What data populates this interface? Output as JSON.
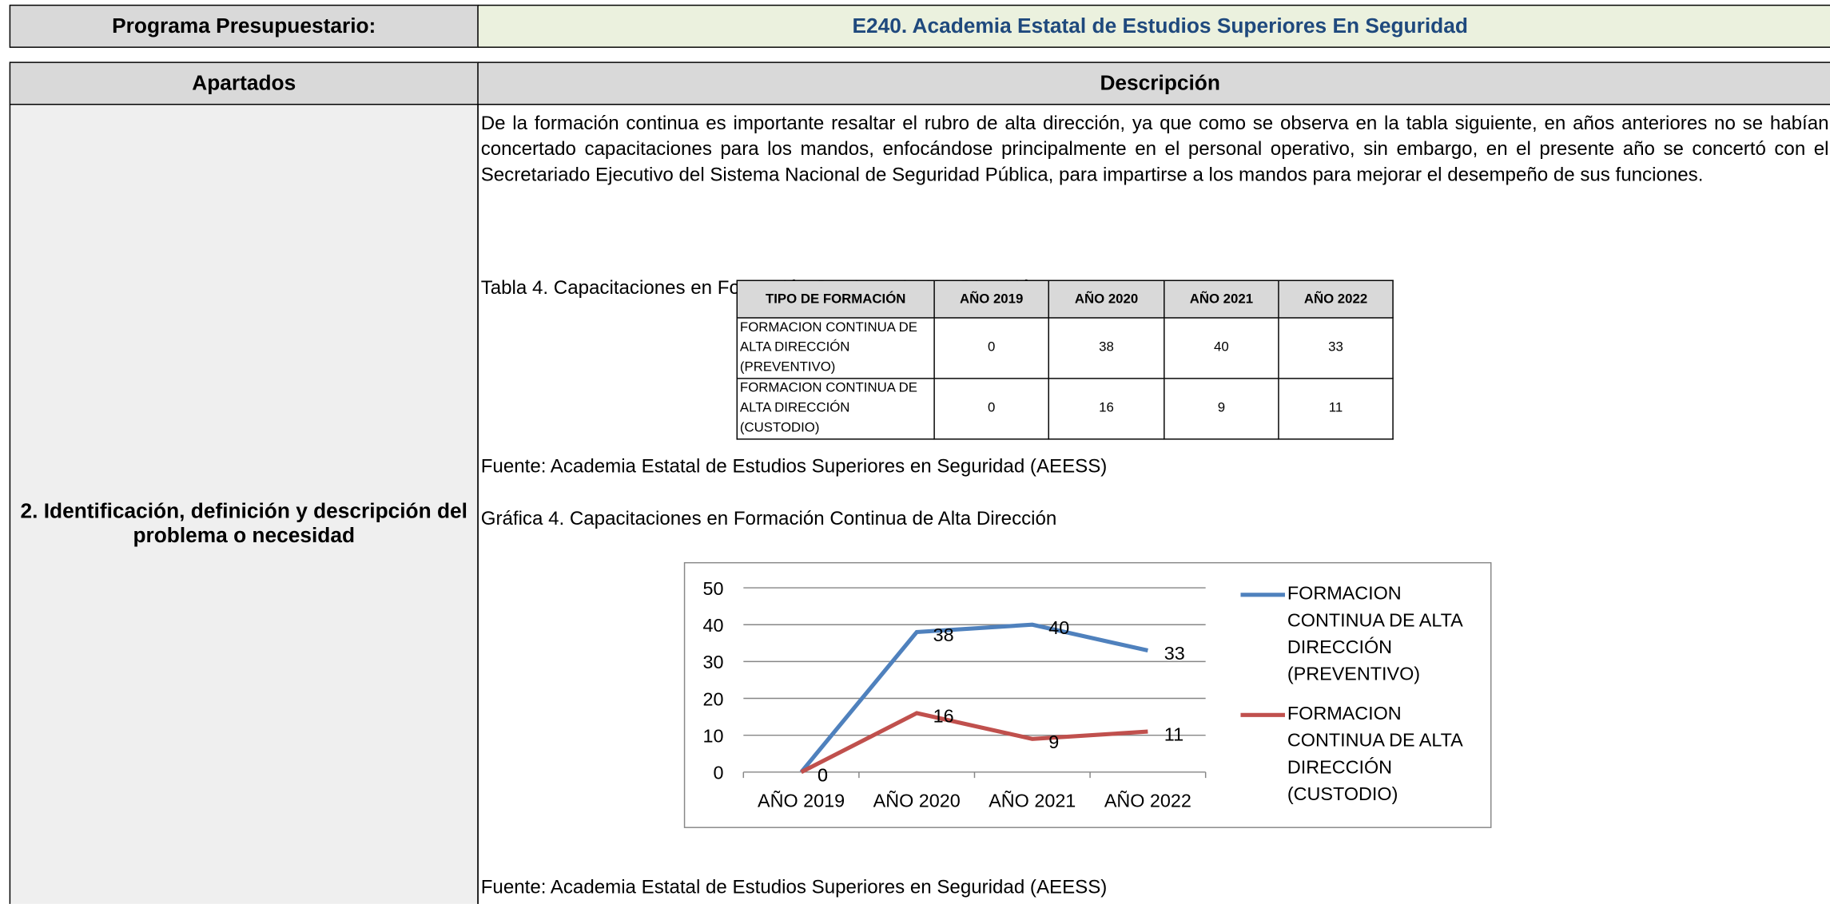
{
  "header": {
    "label": "Programa Presupuestario:",
    "title": "E240. Academia Estatal de Estudios Superiores En Seguridad"
  },
  "columns": [
    "Apartados",
    "Descripción"
  ],
  "section": {
    "label": "2. Identificación, definición y descripción del problema o necesidad",
    "paragraph": "De la formación continua es importante resaltar el rubro de alta dirección, ya que como se observa en la tabla siguiente, en años anteriores no se habían concertado capacitaciones para los mandos, enfocándose principalmente en el personal operativo, sin embargo, en el presente año se concertó con el Secretariado Ejecutivo del Sistema Nacional de Seguridad Pública, para impartirse a los mandos para mejorar el desempeño de sus funciones.",
    "table_caption": "Tabla 4. Capacitaciones en Formación Continua de Alta Dirección",
    "table": {
      "headers": [
        "TIPO DE FORMACIÓN",
        "AÑO 2019",
        "AÑO 2020",
        "AÑO 2021",
        "AÑO 2022"
      ],
      "rows": [
        [
          "FORMACION CONTINUA DE ALTA DIRECCIÓN (PREVENTIVO)",
          0,
          38,
          40,
          33
        ],
        [
          "FORMACION CONTINUA DE ALTA DIRECCIÓN (CUSTODIO)",
          0,
          16,
          9,
          11
        ]
      ]
    },
    "table_source": "Fuente: Academia Estatal de Estudios Superiores en Seguridad (AEESS)",
    "chart_caption": "Gráfica 4. Capacitaciones en Formación Continua de Alta Dirección",
    "chart_source": "Fuente: Academia Estatal de Estudios Superiores en Seguridad (AEESS)"
  },
  "chart_data": {
    "type": "line",
    "categories": [
      "AÑO 2019",
      "AÑO 2020",
      "AÑO 2021",
      "AÑO 2022"
    ],
    "series": [
      {
        "name": "FORMACION CONTINUA DE ALTA DIRECCIÓN (PREVENTIVO)",
        "color": "#4f81bd",
        "values": [
          0,
          38,
          40,
          33
        ]
      },
      {
        "name": "FORMACION CONTINUA DE ALTA DIRECCIÓN (CUSTODIO)",
        "color": "#c0504d",
        "values": [
          0,
          16,
          9,
          11
        ]
      }
    ],
    "ylim": [
      0,
      50
    ],
    "yticks": [
      0,
      10,
      20,
      30,
      40,
      50
    ],
    "grid": true,
    "legend": "right"
  }
}
